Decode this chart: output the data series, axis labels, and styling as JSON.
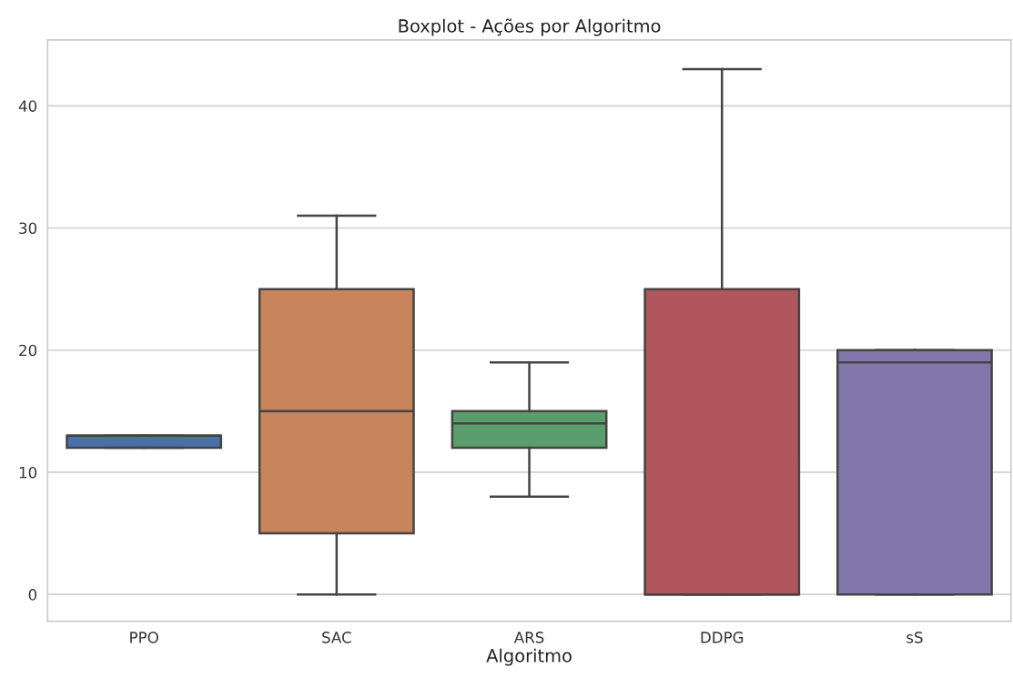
{
  "chart_data": {
    "type": "box",
    "title": "Boxplot - Ações por Algoritmo",
    "xlabel": "Algoritmo",
    "categories": [
      "PPO",
      "SAC",
      "ARS",
      "DDPG",
      "sS"
    ],
    "colors": [
      "#4a70a8",
      "#c8855c",
      "#599e6c",
      "#b1565d",
      "#8177aa"
    ],
    "boxes": [
      {
        "low": 12,
        "q1": 12,
        "median": 13,
        "q3": 13,
        "high": 13
      },
      {
        "low": 0,
        "q1": 5,
        "median": 15,
        "q3": 25,
        "high": 31
      },
      {
        "low": 8,
        "q1": 12,
        "median": 14,
        "q3": 15,
        "high": 19
      },
      {
        "low": 0,
        "q1": 0,
        "median": 0,
        "q3": 25,
        "high": 43
      },
      {
        "low": 0,
        "q1": 0,
        "median": 19,
        "q3": 20,
        "high": 20
      }
    ],
    "ylim": [
      -2.2,
      45.4
    ],
    "yticks": [
      0,
      10,
      20,
      30,
      40
    ],
    "grid": "y"
  }
}
